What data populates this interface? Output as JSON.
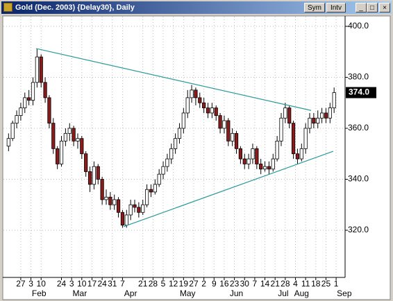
{
  "window": {
    "title": "Gold (Dec. 2003) {Delay30}, Daily",
    "buttons": [
      "Sym",
      "Intv"
    ]
  },
  "chart_data": {
    "type": "candlestick",
    "x": [
      -6,
      -4,
      -2,
      0,
      2,
      4,
      6,
      8,
      10,
      12,
      14,
      16,
      18,
      20,
      22,
      24,
      26,
      28,
      30,
      32,
      34,
      36,
      38,
      40,
      42,
      44,
      46,
      48,
      50,
      52,
      54,
      56,
      58,
      60,
      62,
      64,
      66,
      68,
      70,
      72,
      74,
      76,
      78,
      80,
      82,
      84,
      86,
      88,
      90,
      92,
      94,
      96,
      98,
      100,
      102,
      104,
      106,
      108,
      110,
      112,
      114,
      116,
      118,
      120,
      122,
      124,
      126,
      128,
      130,
      132,
      134,
      136,
      138,
      140,
      142,
      144,
      146,
      148,
      150,
      152,
      154
    ],
    "open": [
      353,
      356,
      362,
      365,
      368,
      372,
      371,
      378,
      388,
      378,
      372,
      362,
      352,
      346,
      355,
      358,
      360,
      355,
      356,
      350,
      343,
      338,
      345,
      340,
      332,
      333,
      330,
      332,
      327,
      322,
      326,
      330,
      329,
      327,
      330,
      336,
      335,
      338,
      342,
      345,
      348,
      352,
      356,
      360,
      366,
      372,
      375,
      372,
      370,
      368,
      366,
      368,
      365,
      360,
      363,
      355,
      358,
      352,
      348,
      346,
      348,
      352,
      346,
      344,
      345,
      344,
      348,
      355,
      364,
      368,
      362,
      350,
      348,
      352,
      360,
      364,
      362,
      364,
      366,
      364,
      368
    ],
    "high": [
      358,
      363,
      367,
      370,
      374,
      375,
      380,
      391,
      389,
      380,
      373,
      364,
      353,
      357,
      360,
      362,
      361,
      358,
      357,
      351,
      345,
      347,
      346,
      341,
      336,
      335,
      334,
      333,
      328,
      328,
      332,
      332,
      331,
      332,
      338,
      338,
      340,
      344,
      347,
      350,
      354,
      358,
      362,
      368,
      375,
      377,
      376,
      374,
      372,
      370,
      370,
      369,
      366,
      365,
      364,
      360,
      359,
      353,
      350,
      350,
      354,
      353,
      348,
      347,
      347,
      350,
      357,
      366,
      370,
      369,
      363,
      352,
      354,
      362,
      366,
      366,
      367,
      368,
      368,
      370,
      376
    ],
    "low": [
      351,
      355,
      360,
      363,
      366,
      369,
      369,
      376,
      376,
      370,
      360,
      350,
      344,
      345,
      353,
      355,
      353,
      352,
      348,
      341,
      335,
      336,
      338,
      330,
      330,
      328,
      328,
      325,
      321,
      321,
      324,
      327,
      325,
      326,
      329,
      333,
      334,
      337,
      340,
      343,
      346,
      350,
      354,
      358,
      364,
      370,
      369,
      368,
      366,
      364,
      364,
      363,
      358,
      358,
      353,
      353,
      350,
      346,
      344,
      344,
      346,
      344,
      342,
      343,
      342,
      343,
      347,
      353,
      362,
      360,
      348,
      346,
      347,
      350,
      358,
      360,
      360,
      362,
      362,
      362,
      366
    ],
    "close": [
      356,
      362,
      365,
      368,
      372,
      371,
      378,
      388,
      378,
      372,
      362,
      352,
      346,
      355,
      358,
      360,
      355,
      356,
      350,
      343,
      338,
      345,
      340,
      332,
      333,
      330,
      332,
      327,
      322,
      326,
      330,
      329,
      327,
      330,
      336,
      335,
      338,
      342,
      345,
      348,
      352,
      356,
      360,
      366,
      372,
      375,
      372,
      370,
      368,
      366,
      368,
      365,
      360,
      363,
      355,
      358,
      352,
      348,
      346,
      348,
      352,
      346,
      344,
      345,
      344,
      348,
      355,
      364,
      368,
      362,
      350,
      348,
      352,
      360,
      364,
      362,
      364,
      366,
      364,
      368,
      374
    ],
    "up_color": "#ffffff",
    "down_color": "#8b1a1a",
    "xlim": [
      -8.5,
      159.4
    ],
    "ylim": [
      301.5,
      403.8
    ],
    "yticks": [
      {
        "value": 320,
        "label": "320.0"
      },
      {
        "value": 340,
        "label": "340.0"
      },
      {
        "value": 360,
        "label": "360.0"
      },
      {
        "value": 380,
        "label": "380.0"
      },
      {
        "value": 400,
        "label": "400.0"
      }
    ],
    "xticks": [
      {
        "value": 0,
        "label": "27"
      },
      {
        "value": 5,
        "label": "3"
      },
      {
        "value": 10,
        "label": "10"
      },
      {
        "value": 20,
        "label": "24"
      },
      {
        "value": 25,
        "label": "3"
      },
      {
        "value": 30,
        "label": "10"
      },
      {
        "value": 35,
        "label": "17"
      },
      {
        "value": 40,
        "label": "24"
      },
      {
        "value": 45,
        "label": "31"
      },
      {
        "value": 50,
        "label": "7"
      },
      {
        "value": 60,
        "label": "21"
      },
      {
        "value": 65,
        "label": "28"
      },
      {
        "value": 70,
        "label": "5"
      },
      {
        "value": 75,
        "label": "12"
      },
      {
        "value": 80,
        "label": "19"
      },
      {
        "value": 85,
        "label": "27"
      },
      {
        "value": 90,
        "label": "2"
      },
      {
        "value": 95,
        "label": "9"
      },
      {
        "value": 100,
        "label": "16"
      },
      {
        "value": 105,
        "label": "23"
      },
      {
        "value": 110,
        "label": "30"
      },
      {
        "value": 115,
        "label": "7"
      },
      {
        "value": 120,
        "label": "14"
      },
      {
        "value": 125,
        "label": "21"
      },
      {
        "value": 130,
        "label": "28"
      },
      {
        "value": 135,
        "label": "4"
      },
      {
        "value": 140,
        "label": "11"
      },
      {
        "value": 145,
        "label": "18"
      },
      {
        "value": 150,
        "label": "25"
      },
      {
        "value": 155,
        "label": "1"
      }
    ],
    "month_labels": [
      {
        "value": 9,
        "label": "Feb"
      },
      {
        "value": 29,
        "label": "Mar"
      },
      {
        "value": 54,
        "label": "Apr"
      },
      {
        "value": 82,
        "label": "May"
      },
      {
        "value": 106,
        "label": "Jun"
      },
      {
        "value": 129,
        "label": "Jul"
      },
      {
        "value": 138,
        "label": "Aug"
      },
      {
        "value": 159,
        "label": "Sep"
      }
    ],
    "trendlines": [
      {
        "x": [
          7.5,
          142.7
        ],
        "y": [
          391.3,
          367.0
        ],
        "color": "#2a9a9a"
      },
      {
        "x": [
          50.5,
          153.6
        ],
        "y": [
          321.4,
          351.0
        ],
        "color": "#2a9a9a"
      }
    ],
    "last_price": {
      "value": 374,
      "label": "374.0"
    },
    "grid": true
  }
}
